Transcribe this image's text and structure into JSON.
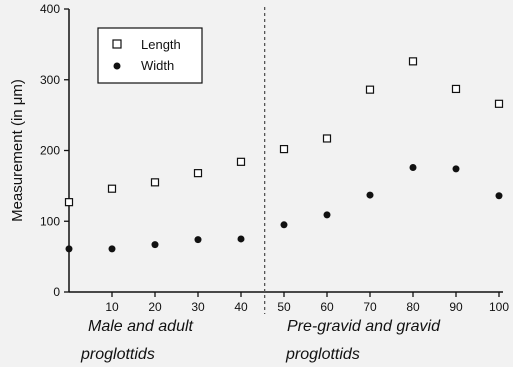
{
  "chart_data": {
    "type": "scatter",
    "title": "",
    "ylabel": "Measurement  (in μm)",
    "xlabel": "",
    "ylim": [
      0,
      400
    ],
    "xlim": [
      0,
      100
    ],
    "x_ticks": [
      10,
      20,
      30,
      40,
      50,
      60,
      70,
      80,
      90,
      100
    ],
    "y_ticks": [
      0,
      100,
      200,
      300,
      400
    ],
    "grid": false,
    "legend_position": "top-left",
    "divider_x": 45.5,
    "group_labels": [
      {
        "line1": "Male and adult",
        "line2": "proglottids"
      },
      {
        "line1": "Pre-gravid and gravid",
        "line2": "proglottids"
      }
    ],
    "series": [
      {
        "name": "Length",
        "marker": "open-square",
        "x": [
          0,
          10,
          20,
          30,
          40,
          50,
          60,
          70,
          80,
          90,
          100
        ],
        "values": [
          127,
          146,
          155,
          168,
          184,
          202,
          217,
          286,
          326,
          287,
          266
        ]
      },
      {
        "name": "Width",
        "marker": "filled-circle",
        "x": [
          0,
          10,
          20,
          30,
          40,
          50,
          60,
          70,
          80,
          90,
          100
        ],
        "values": [
          61,
          61,
          67,
          74,
          75,
          95,
          109,
          137,
          176,
          174,
          136
        ]
      }
    ]
  }
}
